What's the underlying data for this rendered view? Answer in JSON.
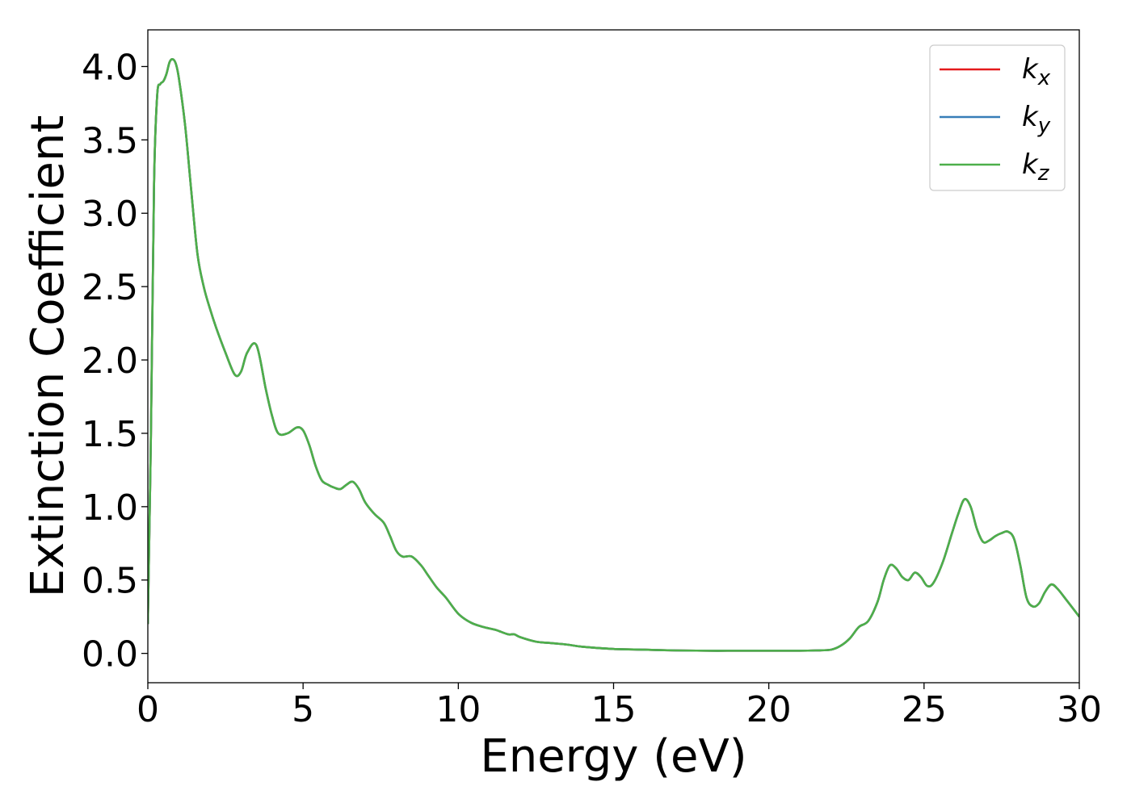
{
  "chart_data": {
    "type": "line",
    "title": "",
    "xlabel": "Energy (eV)",
    "ylabel": "Extinction Coefficient",
    "xlim": [
      0,
      30
    ],
    "ylim": [
      -0.2,
      4.25
    ],
    "xticks": [
      0,
      5,
      10,
      15,
      20,
      25,
      30
    ],
    "xtick_labels": [
      "0",
      "5",
      "10",
      "15",
      "20",
      "25",
      "30"
    ],
    "yticks": [
      0.0,
      0.5,
      1.0,
      1.5,
      2.0,
      2.5,
      3.0,
      3.5,
      4.0
    ],
    "ytick_labels": [
      "0.0",
      "0.5",
      "1.0",
      "1.5",
      "2.0",
      "2.5",
      "3.0",
      "3.5",
      "4.0"
    ],
    "grid": false,
    "legend_position": "top-right",
    "colors": {
      "kx": "#e41a1c",
      "ky": "#377eb8",
      "kz": "#4daf4a"
    },
    "x": [
      0,
      0.1,
      0.2,
      0.3,
      0.4,
      0.5,
      0.6,
      0.7,
      0.8,
      0.9,
      1.0,
      1.2,
      1.4,
      1.6,
      1.8,
      2.0,
      2.2,
      2.5,
      2.8,
      3.0,
      3.2,
      3.5,
      3.8,
      4.0,
      4.2,
      4.5,
      4.8,
      5.0,
      5.2,
      5.4,
      5.6,
      5.8,
      6.0,
      6.2,
      6.4,
      6.6,
      6.8,
      7.0,
      7.3,
      7.6,
      7.8,
      8.0,
      8.2,
      8.5,
      8.8,
      9.0,
      9.3,
      9.6,
      10.0,
      10.4,
      10.8,
      11.2,
      11.6,
      11.8,
      12.0,
      12.5,
      13.0,
      13.5,
      14.0,
      15.0,
      16.0,
      17.0,
      18.0,
      19.0,
      20.0,
      21.0,
      21.5,
      22.0,
      22.3,
      22.6,
      22.9,
      23.2,
      23.5,
      23.7,
      23.9,
      24.1,
      24.3,
      24.5,
      24.7,
      24.9,
      25.1,
      25.3,
      25.6,
      25.9,
      26.1,
      26.3,
      26.5,
      26.7,
      26.9,
      27.1,
      27.3,
      27.5,
      27.7,
      27.9,
      28.1,
      28.3,
      28.5,
      28.7,
      28.9,
      29.1,
      29.3,
      29.6,
      30.0
    ],
    "series": [
      {
        "name": "kx",
        "values": [
          0.2,
          1.5,
          3.2,
          3.8,
          3.88,
          3.9,
          3.95,
          4.03,
          4.05,
          4.02,
          3.92,
          3.6,
          3.15,
          2.72,
          2.5,
          2.35,
          2.22,
          2.05,
          1.9,
          1.92,
          2.05,
          2.1,
          1.8,
          1.62,
          1.5,
          1.5,
          1.54,
          1.52,
          1.42,
          1.28,
          1.18,
          1.15,
          1.13,
          1.12,
          1.15,
          1.17,
          1.12,
          1.03,
          0.95,
          0.89,
          0.8,
          0.7,
          0.66,
          0.66,
          0.6,
          0.54,
          0.45,
          0.38,
          0.27,
          0.21,
          0.18,
          0.16,
          0.13,
          0.13,
          0.11,
          0.08,
          0.07,
          0.06,
          0.045,
          0.03,
          0.025,
          0.02,
          0.018,
          0.018,
          0.018,
          0.018,
          0.02,
          0.025,
          0.05,
          0.1,
          0.18,
          0.22,
          0.35,
          0.5,
          0.6,
          0.58,
          0.52,
          0.5,
          0.55,
          0.52,
          0.46,
          0.48,
          0.62,
          0.82,
          0.95,
          1.05,
          1.0,
          0.85,
          0.76,
          0.77,
          0.8,
          0.82,
          0.83,
          0.78,
          0.6,
          0.38,
          0.32,
          0.34,
          0.42,
          0.47,
          0.44,
          0.36,
          0.25
        ]
      },
      {
        "name": "ky",
        "values": [
          0.2,
          1.5,
          3.2,
          3.8,
          3.88,
          3.9,
          3.95,
          4.03,
          4.05,
          4.02,
          3.92,
          3.6,
          3.15,
          2.72,
          2.5,
          2.35,
          2.22,
          2.05,
          1.9,
          1.92,
          2.05,
          2.1,
          1.8,
          1.62,
          1.5,
          1.5,
          1.54,
          1.52,
          1.42,
          1.28,
          1.18,
          1.15,
          1.13,
          1.12,
          1.15,
          1.17,
          1.12,
          1.03,
          0.95,
          0.89,
          0.8,
          0.7,
          0.66,
          0.66,
          0.6,
          0.54,
          0.45,
          0.38,
          0.27,
          0.21,
          0.18,
          0.16,
          0.13,
          0.13,
          0.11,
          0.08,
          0.07,
          0.06,
          0.045,
          0.03,
          0.025,
          0.02,
          0.018,
          0.018,
          0.018,
          0.018,
          0.02,
          0.025,
          0.05,
          0.1,
          0.18,
          0.22,
          0.35,
          0.5,
          0.6,
          0.58,
          0.52,
          0.5,
          0.55,
          0.52,
          0.46,
          0.48,
          0.62,
          0.82,
          0.95,
          1.05,
          1.0,
          0.85,
          0.76,
          0.77,
          0.8,
          0.82,
          0.83,
          0.78,
          0.6,
          0.38,
          0.32,
          0.34,
          0.42,
          0.47,
          0.44,
          0.36,
          0.25
        ]
      },
      {
        "name": "kz",
        "values": [
          0.2,
          1.5,
          3.2,
          3.8,
          3.88,
          3.9,
          3.95,
          4.03,
          4.05,
          4.02,
          3.92,
          3.6,
          3.15,
          2.72,
          2.5,
          2.35,
          2.22,
          2.05,
          1.9,
          1.92,
          2.05,
          2.1,
          1.8,
          1.62,
          1.5,
          1.5,
          1.54,
          1.52,
          1.42,
          1.28,
          1.18,
          1.15,
          1.13,
          1.12,
          1.15,
          1.17,
          1.12,
          1.03,
          0.95,
          0.89,
          0.8,
          0.7,
          0.66,
          0.66,
          0.6,
          0.54,
          0.45,
          0.38,
          0.27,
          0.21,
          0.18,
          0.16,
          0.13,
          0.13,
          0.11,
          0.08,
          0.07,
          0.06,
          0.045,
          0.03,
          0.025,
          0.02,
          0.018,
          0.018,
          0.018,
          0.018,
          0.02,
          0.025,
          0.05,
          0.1,
          0.18,
          0.22,
          0.35,
          0.5,
          0.6,
          0.58,
          0.52,
          0.5,
          0.55,
          0.52,
          0.46,
          0.48,
          0.62,
          0.82,
          0.95,
          1.05,
          1.0,
          0.85,
          0.76,
          0.77,
          0.8,
          0.82,
          0.83,
          0.78,
          0.6,
          0.38,
          0.32,
          0.34,
          0.42,
          0.47,
          0.44,
          0.36,
          0.25
        ]
      }
    ],
    "legend": [
      {
        "key": "kx",
        "main": "k",
        "sub": "x"
      },
      {
        "key": "ky",
        "main": "k",
        "sub": "y"
      },
      {
        "key": "kz",
        "main": "k",
        "sub": "z"
      }
    ]
  }
}
